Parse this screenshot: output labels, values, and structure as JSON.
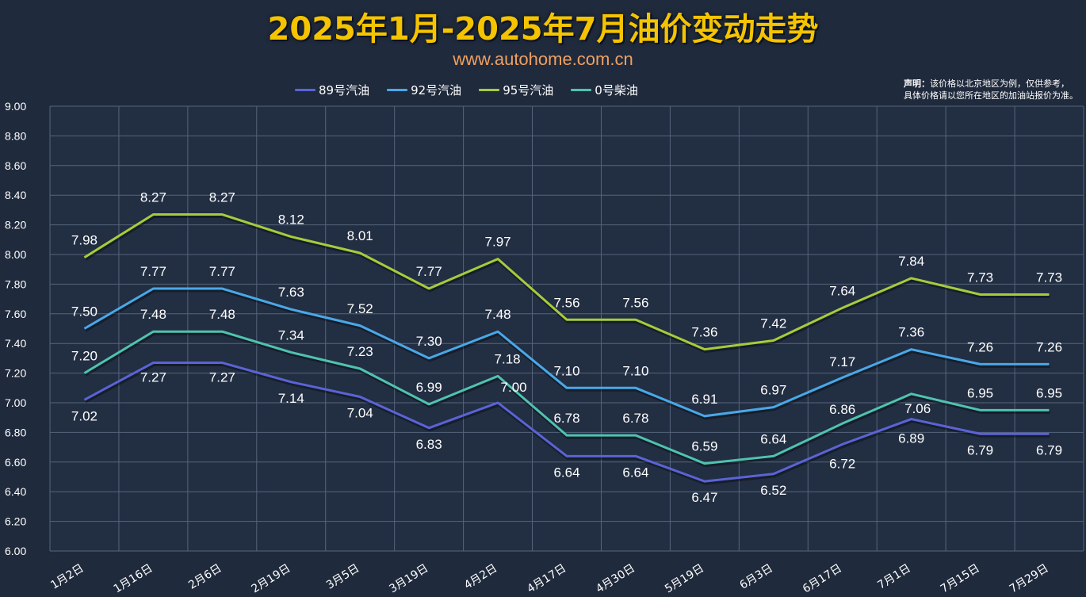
{
  "header": {
    "title": "2025年1月-2025年7月油价变动走势",
    "subtitle": "www.autohome.com.cn",
    "notice_label": "声明：",
    "notice_line1": "该价格以北京地区为例，仅供参考，",
    "notice_line2": "具体价格请以您所在地区的加油站报价为准。"
  },
  "chart_data": {
    "type": "line",
    "title": "2025年1月-2025年7月油价变动走势",
    "xlabel": "",
    "ylabel": "",
    "ylim": [
      6.0,
      9.0
    ],
    "yticks": [
      "6.00",
      "6.20",
      "6.40",
      "6.60",
      "6.80",
      "7.00",
      "7.20",
      "7.40",
      "7.60",
      "7.80",
      "8.00",
      "8.20",
      "8.40",
      "8.60",
      "8.80",
      "9.00"
    ],
    "grid": true,
    "legend_position": "top",
    "categories": [
      "1月2日",
      "1月16日",
      "2月6日",
      "2月19日",
      "3月5日",
      "3月19日",
      "4月2日",
      "4月17日",
      "4月30日",
      "5月19日",
      "6月3日",
      "6月17日",
      "7月1日",
      "7月15日",
      "7月29日"
    ],
    "series": [
      {
        "name": "89号汽油",
        "color": "#5b63d6",
        "values": [
          7.02,
          7.27,
          7.27,
          7.14,
          7.04,
          6.83,
          7.0,
          6.64,
          6.64,
          6.47,
          6.52,
          6.72,
          6.89,
          6.79,
          6.79
        ],
        "labels": [
          "7.02",
          "7.27",
          "7.27",
          "7.14",
          "7.04",
          "6.83",
          "7.00",
          "6.64",
          "6.64",
          "6.47",
          "6.52",
          "6.72",
          "6.89",
          "6.79",
          "6.79"
        ]
      },
      {
        "name": "92号汽油",
        "color": "#49a8e8",
        "values": [
          7.5,
          7.77,
          7.77,
          7.63,
          7.52,
          7.3,
          7.48,
          7.1,
          7.1,
          6.91,
          6.97,
          7.17,
          7.36,
          7.26,
          7.26
        ],
        "labels": [
          "7.50",
          "7.77",
          "7.77",
          "7.63",
          "7.52",
          "7.30",
          "7.48",
          "7.10",
          "7.10",
          "6.91",
          "6.97",
          "7.17",
          "7.36",
          "7.26",
          "7.26"
        ]
      },
      {
        "name": "95号汽油",
        "color": "#a6cc3c",
        "values": [
          7.98,
          8.27,
          8.27,
          8.12,
          8.01,
          7.77,
          7.97,
          7.56,
          7.56,
          7.36,
          7.42,
          7.64,
          7.84,
          7.73,
          7.73
        ],
        "labels": [
          "7.98",
          "8.27",
          "8.27",
          "8.12",
          "8.01",
          "7.77",
          "7.97",
          "7.56",
          "7.56",
          "7.36",
          "7.42",
          "7.64",
          "7.84",
          "7.73",
          "7.73"
        ]
      },
      {
        "name": "0号柴油",
        "color": "#4fc3b0",
        "values": [
          7.2,
          7.48,
          7.48,
          7.34,
          7.23,
          6.99,
          7.18,
          6.78,
          6.78,
          6.59,
          6.64,
          6.86,
          7.06,
          6.95,
          6.95
        ],
        "labels": [
          "7.20",
          "7.48",
          "7.48",
          "7.34",
          "7.23",
          "6.99",
          "7.18",
          "6.78",
          "6.78",
          "6.59",
          "6.64",
          "6.86",
          "7.06",
          "6.95",
          "6.95"
        ]
      }
    ]
  }
}
